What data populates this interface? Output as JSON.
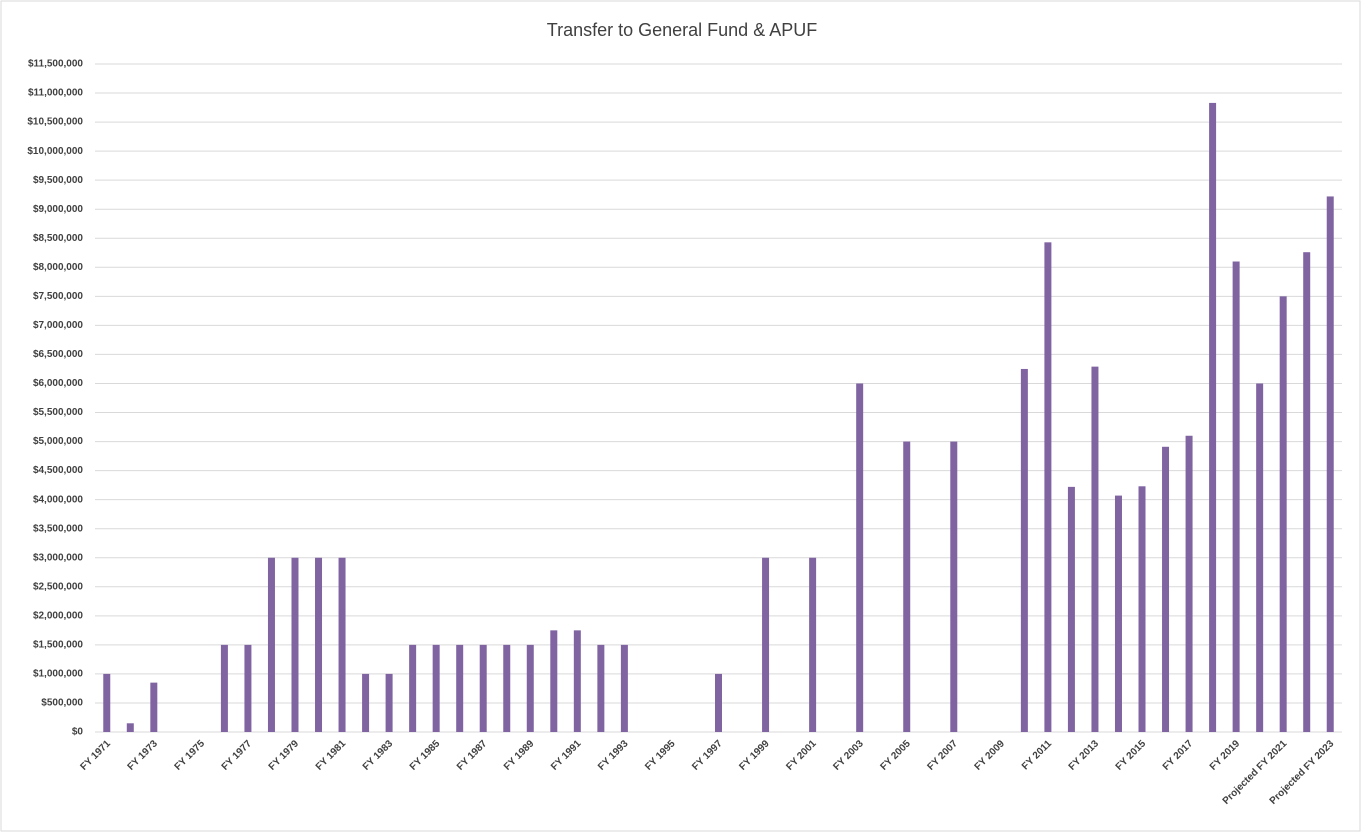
{
  "chart_data": {
    "type": "bar",
    "title": "Transfer to General Fund & APUF",
    "categories": [
      "FY 1971",
      null,
      "FY 1973",
      null,
      "FY 1975",
      null,
      "FY 1977",
      null,
      "FY 1979",
      null,
      "FY 1981",
      null,
      "FY 1983",
      null,
      "FY 1985",
      null,
      "FY 1987",
      null,
      "FY 1989",
      null,
      "FY 1991",
      null,
      "FY 1993",
      null,
      "FY 1995",
      null,
      "FY 1997",
      null,
      "FY 1999",
      null,
      "FY 2001",
      null,
      "FY 2003",
      null,
      "FY 2005",
      null,
      "FY 2007",
      null,
      "FY 2009",
      null,
      "FY 2011",
      null,
      "FY 2013",
      null,
      "FY 2015",
      null,
      "FY 2017",
      null,
      "FY 2019",
      null,
      "Projected FY 2021",
      null,
      "Projected FY 2023"
    ],
    "values": [
      1000000,
      150000,
      850000,
      0,
      0,
      1500000,
      1500000,
      3000000,
      3000000,
      3000000,
      3000000,
      1000000,
      1000000,
      1500000,
      1500000,
      1500000,
      1500000,
      1500000,
      1500000,
      1750000,
      1750000,
      1500000,
      1500000,
      0,
      0,
      0,
      1000000,
      0,
      3000000,
      0,
      3000000,
      0,
      6000000,
      0,
      5000000,
      0,
      5000000,
      0,
      0,
      6250000,
      8430000,
      4220000,
      6290000,
      4070000,
      4230000,
      4910000,
      5100000,
      10830000,
      8100000,
      6000000,
      7500000,
      8260000,
      9220000
    ],
    "color": "#8064a2",
    "ylim": [
      0,
      11500000
    ],
    "yticks": [
      {
        "value": 0,
        "label": "$0"
      },
      {
        "value": 500000,
        "label": "$500,000"
      },
      {
        "value": 1000000,
        "label": "$1,000,000"
      },
      {
        "value": 1500000,
        "label": "$1,500,000"
      },
      {
        "value": 2000000,
        "label": "$2,000,000"
      },
      {
        "value": 2500000,
        "label": "$2,500,000"
      },
      {
        "value": 3000000,
        "label": "$3,000,000"
      },
      {
        "value": 3500000,
        "label": "$3,500,000"
      },
      {
        "value": 4000000,
        "label": "$4,000,000"
      },
      {
        "value": 4500000,
        "label": "$4,500,000"
      },
      {
        "value": 5000000,
        "label": "$5,000,000"
      },
      {
        "value": 5500000,
        "label": "$5,500,000"
      },
      {
        "value": 6000000,
        "label": "$6,000,000"
      },
      {
        "value": 6500000,
        "label": "$6,500,000"
      },
      {
        "value": 7000000,
        "label": "$7,000,000"
      },
      {
        "value": 7500000,
        "label": "$7,500,000"
      },
      {
        "value": 8000000,
        "label": "$8,000,000"
      },
      {
        "value": 8500000,
        "label": "$8,500,000"
      },
      {
        "value": 9000000,
        "label": "$9,000,000"
      },
      {
        "value": 9500000,
        "label": "$9,500,000"
      },
      {
        "value": 10000000,
        "label": "$10,000,000"
      },
      {
        "value": 10500000,
        "label": "$10,500,000"
      },
      {
        "value": 11000000,
        "label": "$11,000,000"
      },
      {
        "value": 11500000,
        "label": "$11,500,000"
      }
    ],
    "grid": true
  }
}
